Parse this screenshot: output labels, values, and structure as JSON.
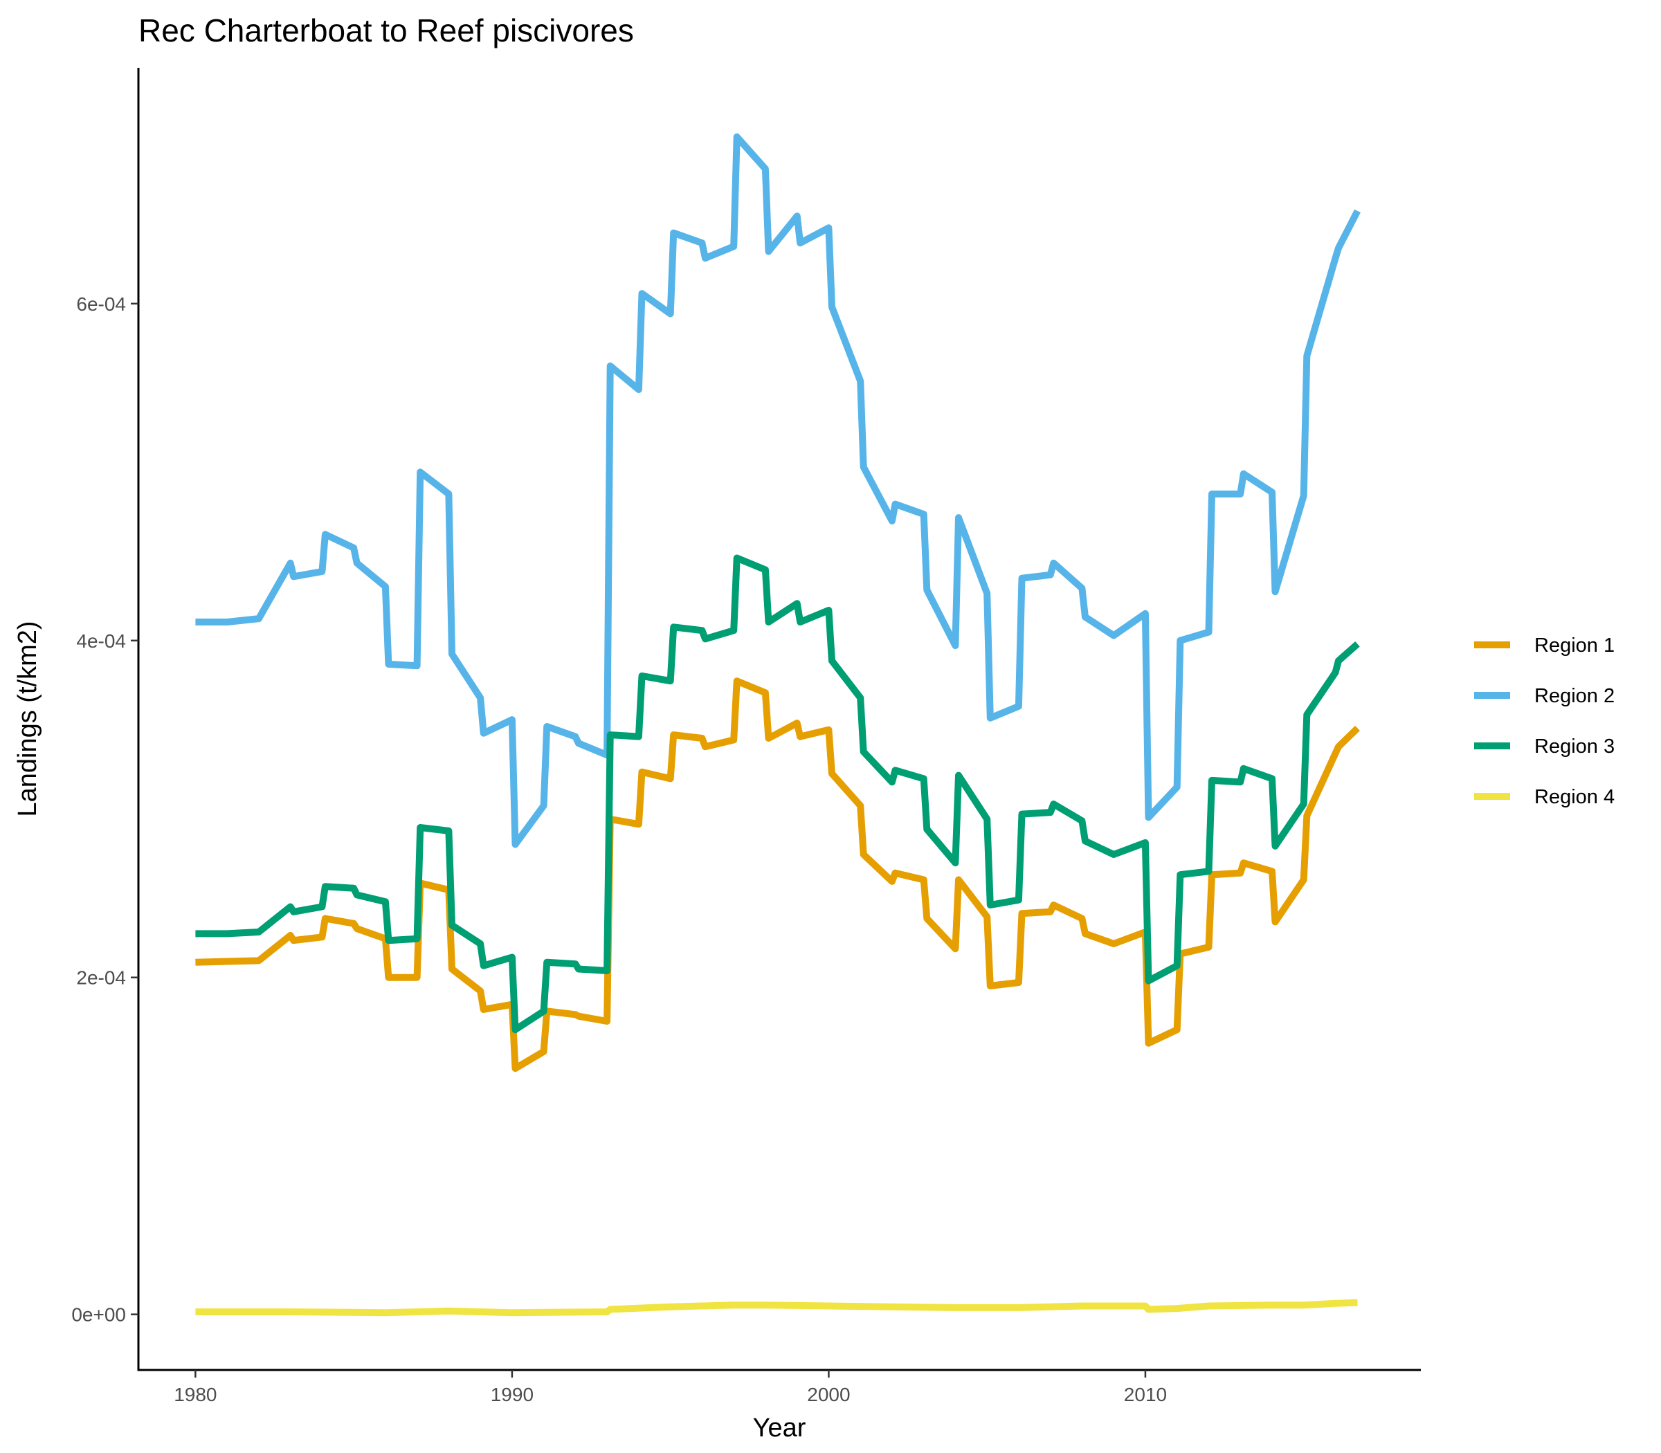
{
  "chart_data": {
    "type": "line",
    "title": "Rec Charterboat to Reef piscivores",
    "xlabel": "Year",
    "ylabel": "Landings (t/km2)",
    "xlim": [
      1978.2,
      2018.7
    ],
    "ylim": [
      -3.3e-05,
      0.00074
    ],
    "x_ticks": [
      1980,
      1990,
      2000,
      2010
    ],
    "x_tick_labels": [
      "1980",
      "1990",
      "2000",
      "2010"
    ],
    "y_ticks": [
      0,
      0.0002,
      0.0004,
      0.0006
    ],
    "y_tick_labels": [
      "0e+00",
      "2e-04",
      "4e-04",
      "6e-04"
    ],
    "grid": false,
    "legend_position": "right",
    "series": [
      {
        "name": "Region 1",
        "color": "#E69F00",
        "points": [
          [
            1980,
            0.000209
          ],
          [
            1982,
            0.00021
          ],
          [
            1983,
            0.000225
          ],
          [
            1983.1,
            0.000222
          ],
          [
            1984,
            0.000224
          ],
          [
            1984.1,
            0.000235
          ],
          [
            1985,
            0.000232
          ],
          [
            1985.1,
            0.000229
          ],
          [
            1986,
            0.000223
          ],
          [
            1986.1,
            0.0002
          ],
          [
            1987,
            0.0002
          ],
          [
            1987.1,
            0.000256
          ],
          [
            1988,
            0.000252
          ],
          [
            1988.1,
            0.000205
          ],
          [
            1989,
            0.000192
          ],
          [
            1989.1,
            0.000181
          ],
          [
            1990,
            0.000184
          ],
          [
            1990.1,
            0.000146
          ],
          [
            1991,
            0.000156
          ],
          [
            1991.1,
            0.00018
          ],
          [
            1992,
            0.000178
          ],
          [
            1992.1,
            0.000177
          ],
          [
            1993,
            0.000174
          ],
          [
            1993.1,
            0.000294
          ],
          [
            1994,
            0.000291
          ],
          [
            1994.1,
            0.000322
          ],
          [
            1995,
            0.000318
          ],
          [
            1995.1,
            0.000344
          ],
          [
            1996,
            0.000342
          ],
          [
            1996.1,
            0.000337
          ],
          [
            1997,
            0.000341
          ],
          [
            1997.1,
            0.000376
          ],
          [
            1998,
            0.000369
          ],
          [
            1998.1,
            0.000342
          ],
          [
            1999,
            0.000351
          ],
          [
            1999.1,
            0.000343
          ],
          [
            2000,
            0.000347
          ],
          [
            2000.1,
            0.000321
          ],
          [
            2001,
            0.000302
          ],
          [
            2001.1,
            0.000273
          ],
          [
            2002,
            0.000257
          ],
          [
            2002.1,
            0.000262
          ],
          [
            2003,
            0.000258
          ],
          [
            2003.1,
            0.000235
          ],
          [
            2004,
            0.000217
          ],
          [
            2004.1,
            0.000258
          ],
          [
            2005,
            0.000236
          ],
          [
            2005.1,
            0.000195
          ],
          [
            2006,
            0.000197
          ],
          [
            2006.1,
            0.000238
          ],
          [
            2007,
            0.000239
          ],
          [
            2007.1,
            0.000243
          ],
          [
            2008,
            0.000235
          ],
          [
            2008.1,
            0.000226
          ],
          [
            2009,
            0.00022
          ],
          [
            2010,
            0.000227
          ],
          [
            2010.1,
            0.000161
          ],
          [
            2011,
            0.000169
          ],
          [
            2011.1,
            0.000214
          ],
          [
            2012,
            0.000218
          ],
          [
            2012.1,
            0.000261
          ],
          [
            2013,
            0.000262
          ],
          [
            2013.1,
            0.000268
          ],
          [
            2014,
            0.000263
          ],
          [
            2014.1,
            0.000233
          ],
          [
            2015,
            0.000258
          ],
          [
            2015.1,
            0.000296
          ],
          [
            2016,
            0.000333
          ],
          [
            2016.1,
            0.000337
          ],
          [
            2016.7,
            0.000348
          ]
        ]
      },
      {
        "name": "Region 2",
        "color": "#56B4E9",
        "points": [
          [
            1980,
            0.000411
          ],
          [
            1981,
            0.000411
          ],
          [
            1982,
            0.000413
          ],
          [
            1983,
            0.000446
          ],
          [
            1983.1,
            0.000438
          ],
          [
            1984,
            0.000441
          ],
          [
            1984.1,
            0.000463
          ],
          [
            1985,
            0.000455
          ],
          [
            1985.1,
            0.000446
          ],
          [
            1986,
            0.000432
          ],
          [
            1986.1,
            0.000386
          ],
          [
            1987,
            0.000385
          ],
          [
            1987.1,
            0.0005
          ],
          [
            1988,
            0.000487
          ],
          [
            1988.1,
            0.000392
          ],
          [
            1989,
            0.000366
          ],
          [
            1989.1,
            0.000345
          ],
          [
            1990,
            0.000353
          ],
          [
            1990.1,
            0.000279
          ],
          [
            1991,
            0.000302
          ],
          [
            1991.1,
            0.000349
          ],
          [
            1992,
            0.000343
          ],
          [
            1992.1,
            0.000339
          ],
          [
            1993,
            0.000332
          ],
          [
            1993.1,
            0.000563
          ],
          [
            1994,
            0.000549
          ],
          [
            1994.1,
            0.000606
          ],
          [
            1995,
            0.000594
          ],
          [
            1995.1,
            0.000642
          ],
          [
            1996,
            0.000636
          ],
          [
            1996.1,
            0.000627
          ],
          [
            1997,
            0.000634
          ],
          [
            1997.1,
            0.000699
          ],
          [
            1998,
            0.00068
          ],
          [
            1998.1,
            0.000631
          ],
          [
            1999,
            0.000652
          ],
          [
            1999.1,
            0.000636
          ],
          [
            2000,
            0.000645
          ],
          [
            2000.1,
            0.000598
          ],
          [
            2001,
            0.000554
          ],
          [
            2001.1,
            0.000503
          ],
          [
            2002,
            0.000471
          ],
          [
            2002.1,
            0.000481
          ],
          [
            2003,
            0.000475
          ],
          [
            2003.1,
            0.00043
          ],
          [
            2004,
            0.000397
          ],
          [
            2004.1,
            0.000473
          ],
          [
            2005,
            0.000428
          ],
          [
            2005.1,
            0.000354
          ],
          [
            2006,
            0.000361
          ],
          [
            2006.1,
            0.000437
          ],
          [
            2007,
            0.000439
          ],
          [
            2007.1,
            0.000446
          ],
          [
            2008,
            0.000431
          ],
          [
            2008.1,
            0.000414
          ],
          [
            2009,
            0.000403
          ],
          [
            2010,
            0.000416
          ],
          [
            2010.1,
            0.000295
          ],
          [
            2011,
            0.000313
          ],
          [
            2011.1,
            0.0004
          ],
          [
            2012,
            0.000405
          ],
          [
            2012.1,
            0.000487
          ],
          [
            2013,
            0.000487
          ],
          [
            2013.1,
            0.000499
          ],
          [
            2014,
            0.000488
          ],
          [
            2014.1,
            0.000429
          ],
          [
            2015,
            0.000486
          ],
          [
            2015.1,
            0.000569
          ],
          [
            2016,
            0.000627
          ],
          [
            2016.1,
            0.000633
          ],
          [
            2016.7,
            0.000655
          ]
        ]
      },
      {
        "name": "Region 3",
        "color": "#009E73",
        "points": [
          [
            1980,
            0.000226
          ],
          [
            1981,
            0.000226
          ],
          [
            1982,
            0.000227
          ],
          [
            1983,
            0.000242
          ],
          [
            1983.1,
            0.000239
          ],
          [
            1984,
            0.000242
          ],
          [
            1984.1,
            0.000254
          ],
          [
            1985,
            0.000253
          ],
          [
            1985.1,
            0.000249
          ],
          [
            1986,
            0.000245
          ],
          [
            1986.1,
            0.000222
          ],
          [
            1987,
            0.000223
          ],
          [
            1987.1,
            0.000289
          ],
          [
            1988,
            0.000287
          ],
          [
            1988.1,
            0.000231
          ],
          [
            1989,
            0.00022
          ],
          [
            1989.1,
            0.000207
          ],
          [
            1990,
            0.000212
          ],
          [
            1990.1,
            0.000169
          ],
          [
            1991,
            0.00018
          ],
          [
            1991.1,
            0.000209
          ],
          [
            1992,
            0.000208
          ],
          [
            1992.1,
            0.000205
          ],
          [
            1993,
            0.000204
          ],
          [
            1993.1,
            0.000344
          ],
          [
            1994,
            0.000343
          ],
          [
            1994.1,
            0.000379
          ],
          [
            1995,
            0.000376
          ],
          [
            1995.1,
            0.000408
          ],
          [
            1996,
            0.000406
          ],
          [
            1996.1,
            0.000401
          ],
          [
            1997,
            0.000406
          ],
          [
            1997.1,
            0.000449
          ],
          [
            1998,
            0.000442
          ],
          [
            1998.1,
            0.000411
          ],
          [
            1999,
            0.000422
          ],
          [
            1999.1,
            0.000411
          ],
          [
            2000,
            0.000418
          ],
          [
            2000.1,
            0.000388
          ],
          [
            2001,
            0.000366
          ],
          [
            2001.1,
            0.000334
          ],
          [
            2002,
            0.000316
          ],
          [
            2002.1,
            0.000323
          ],
          [
            2003,
            0.000318
          ],
          [
            2003.1,
            0.000288
          ],
          [
            2004,
            0.000268
          ],
          [
            2004.1,
            0.00032
          ],
          [
            2005,
            0.000294
          ],
          [
            2005.1,
            0.000243
          ],
          [
            2006,
            0.000246
          ],
          [
            2006.1,
            0.000297
          ],
          [
            2007,
            0.000298
          ],
          [
            2007.1,
            0.000303
          ],
          [
            2008,
            0.000293
          ],
          [
            2008.1,
            0.000281
          ],
          [
            2009,
            0.000273
          ],
          [
            2010,
            0.00028
          ],
          [
            2010.1,
            0.000198
          ],
          [
            2011,
            0.000207
          ],
          [
            2011.1,
            0.000261
          ],
          [
            2012,
            0.000263
          ],
          [
            2012.1,
            0.000317
          ],
          [
            2013,
            0.000316
          ],
          [
            2013.1,
            0.000324
          ],
          [
            2014,
            0.000318
          ],
          [
            2014.1,
            0.000278
          ],
          [
            2015,
            0.000303
          ],
          [
            2015.1,
            0.000356
          ],
          [
            2016,
            0.000381
          ],
          [
            2016.1,
            0.000388
          ],
          [
            2016.7,
            0.000398
          ]
        ]
      },
      {
        "name": "Region 4",
        "color": "#F0E442",
        "points": [
          [
            1980,
            1.5e-06
          ],
          [
            1983,
            1.5e-06
          ],
          [
            1986,
            1e-06
          ],
          [
            1987,
            1.5e-06
          ],
          [
            1988,
            2e-06
          ],
          [
            1990,
            1e-06
          ],
          [
            1993,
            1.5e-06
          ],
          [
            1993.1,
            3e-06
          ],
          [
            1995,
            4.5e-06
          ],
          [
            1997,
            5.5e-06
          ],
          [
            1998,
            5.5e-06
          ],
          [
            2000,
            5e-06
          ],
          [
            2002,
            4.5e-06
          ],
          [
            2004,
            4e-06
          ],
          [
            2005,
            4e-06
          ],
          [
            2006,
            4e-06
          ],
          [
            2008,
            5e-06
          ],
          [
            2010,
            5e-06
          ],
          [
            2010.1,
            3e-06
          ],
          [
            2011,
            3.5e-06
          ],
          [
            2012,
            5e-06
          ],
          [
            2014,
            5.5e-06
          ],
          [
            2015,
            5.5e-06
          ],
          [
            2016,
            6.5e-06
          ],
          [
            2016.7,
            7e-06
          ]
        ]
      }
    ]
  }
}
